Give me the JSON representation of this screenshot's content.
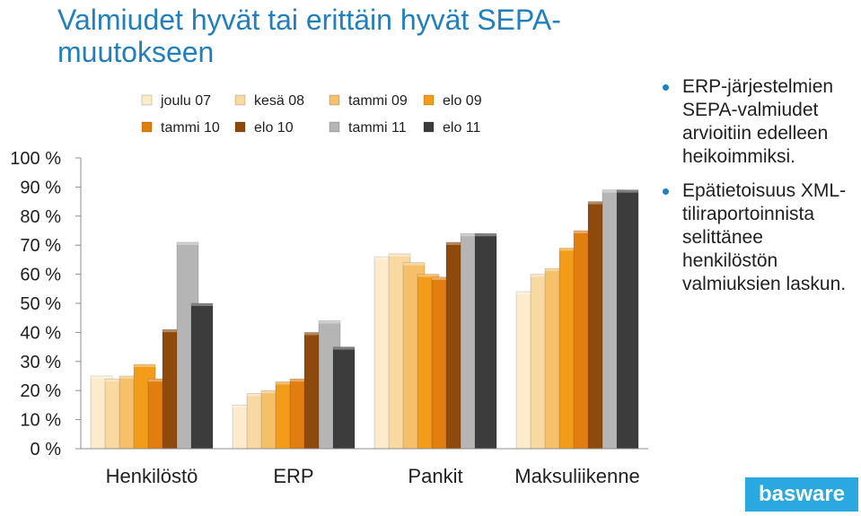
{
  "title": "Valmiudet hyvät tai erittäin hyvät SEPA-muutokseen",
  "bullets": [
    "ERP-järjestelmien SEPA-valmiudet arvioitiin edelleen heikoimmiksi.",
    "Epätietoisuus XML-tiliraportoinnista selittänee henkilöstön valmiuksien laskun."
  ],
  "logo": {
    "text": "basware",
    "color": "#2aa9e0"
  },
  "chart_data": {
    "type": "bar",
    "categories": [
      "Henkilöstö",
      "ERP",
      "Pankit",
      "Maksuliikenne"
    ],
    "y_ticks": [
      "0 %",
      "10 %",
      "20 %",
      "30 %",
      "40 %",
      "50 %",
      "60 %",
      "70 %",
      "80 %",
      "90 %",
      "100 %"
    ],
    "ylim": [
      0,
      100
    ],
    "grid": false,
    "legend_position": "top",
    "series": [
      {
        "name": "joulu 07",
        "color": "#fdebcc",
        "values": [
          25,
          15,
          66,
          54
        ]
      },
      {
        "name": "kesä 08",
        "color": "#f9d9a2",
        "values": [
          24,
          19,
          67,
          60
        ]
      },
      {
        "name": "tammi 09",
        "color": "#f6c06a",
        "values": [
          25,
          20,
          64,
          62
        ]
      },
      {
        "name": "elo 09",
        "color": "#f39c1a",
        "values": [
          29,
          23,
          60,
          69
        ]
      },
      {
        "name": "tammi 10",
        "color": "#e07e10",
        "values": [
          24,
          24,
          59,
          75
        ]
      },
      {
        "name": "elo 10",
        "color": "#8e4a0c",
        "values": [
          41,
          40,
          71,
          85
        ]
      },
      {
        "name": "tammi 11",
        "color": "#b5b5b5",
        "values": [
          71,
          44,
          74,
          89
        ]
      },
      {
        "name": "elo 11",
        "color": "#3c3c3c",
        "values": [
          50,
          35,
          74,
          89
        ]
      }
    ]
  }
}
